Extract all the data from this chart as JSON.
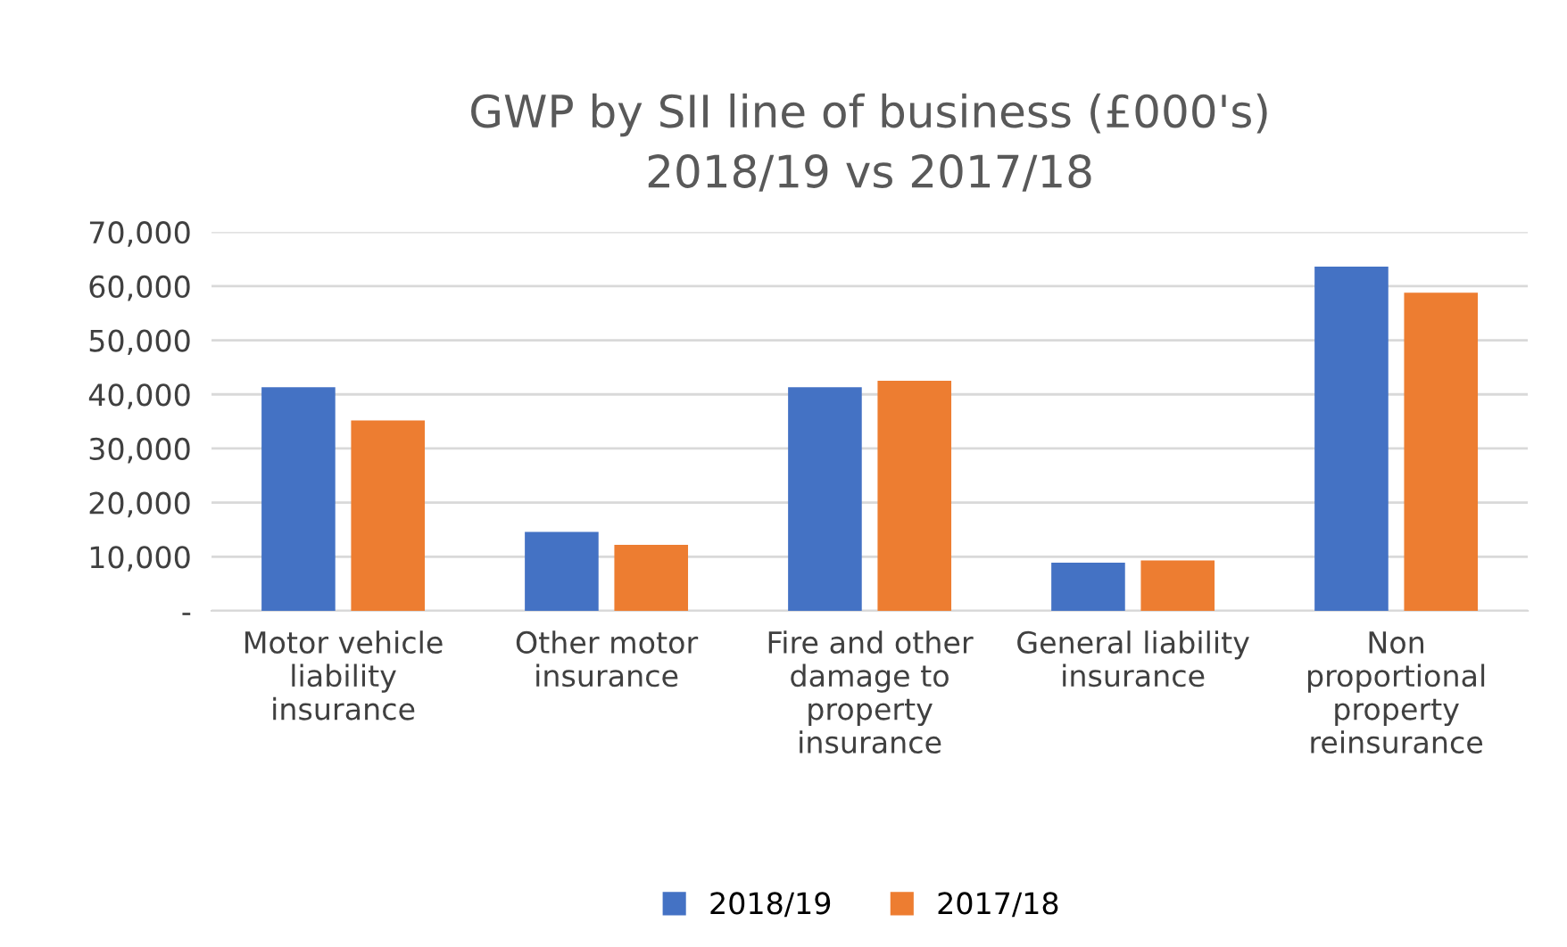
{
  "chart_data": {
    "type": "bar",
    "title": "GWP by SII line of business (£000's)\n2018/19 vs 2017/18",
    "categories": [
      "Motor vehicle\nliability\ninsurance",
      "Other motor\ninsurance",
      "Fire and other\ndamage to\nproperty\ninsurance",
      "General liability\ninsurance",
      "Non\nproportional\nproperty\nreinsurance"
    ],
    "series": [
      {
        "name": "2018/19",
        "color": "#4472c4",
        "values": [
          41300,
          14600,
          41300,
          8900,
          63600
        ]
      },
      {
        "name": "2017/18",
        "color": "#ed7d31",
        "values": [
          35200,
          12200,
          42500,
          9300,
          58800
        ]
      }
    ],
    "ylim": [
      0,
      70000
    ],
    "yticks": [
      {
        "value": 0,
        "label": "-"
      },
      {
        "value": 10000,
        "label": "10,000"
      },
      {
        "value": 20000,
        "label": "20,000"
      },
      {
        "value": 30000,
        "label": "30,000"
      },
      {
        "value": 40000,
        "label": "40,000"
      },
      {
        "value": 50000,
        "label": "50,000"
      },
      {
        "value": 60000,
        "label": "60,000"
      },
      {
        "value": 70000,
        "label": "70,000"
      }
    ],
    "grid": "y",
    "legend": "bottom"
  }
}
